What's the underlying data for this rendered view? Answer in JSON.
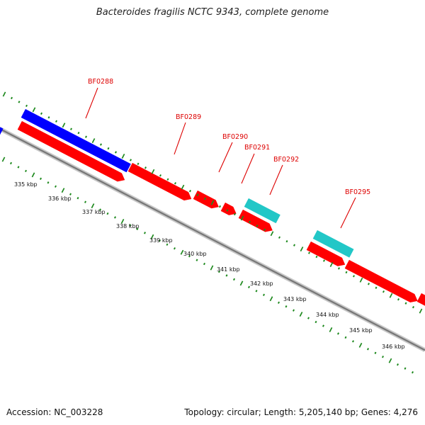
{
  "title": "Bacteroides fragilis NCTC 9343, complete genome",
  "footer": {
    "accession": "Accession: NC_003228",
    "summary": "Topology: circular; Length: 5,205,140 bp; Genes: 4,276"
  },
  "colors": {
    "forward_strand_gene": "#ff0000",
    "reverse_strand_gene": "#0000ff",
    "rna_gene": "#22c7c7",
    "backbone": "#777777",
    "tick": "#1f8a1f",
    "gene_label": "#dd0000"
  },
  "gene_labels": [
    "BF0288",
    "BF0289",
    "BF0290",
    "BF0291",
    "BF0292",
    "BF0295"
  ],
  "scale_labels": [
    "335 kbp",
    "336 kbp",
    "337 kbp",
    "338 kbp",
    "339 kbp",
    "340 kbp",
    "341 kbp",
    "342 kbp",
    "343 kbp",
    "344 kbp",
    "345 kbp",
    "346 kbp"
  ]
}
